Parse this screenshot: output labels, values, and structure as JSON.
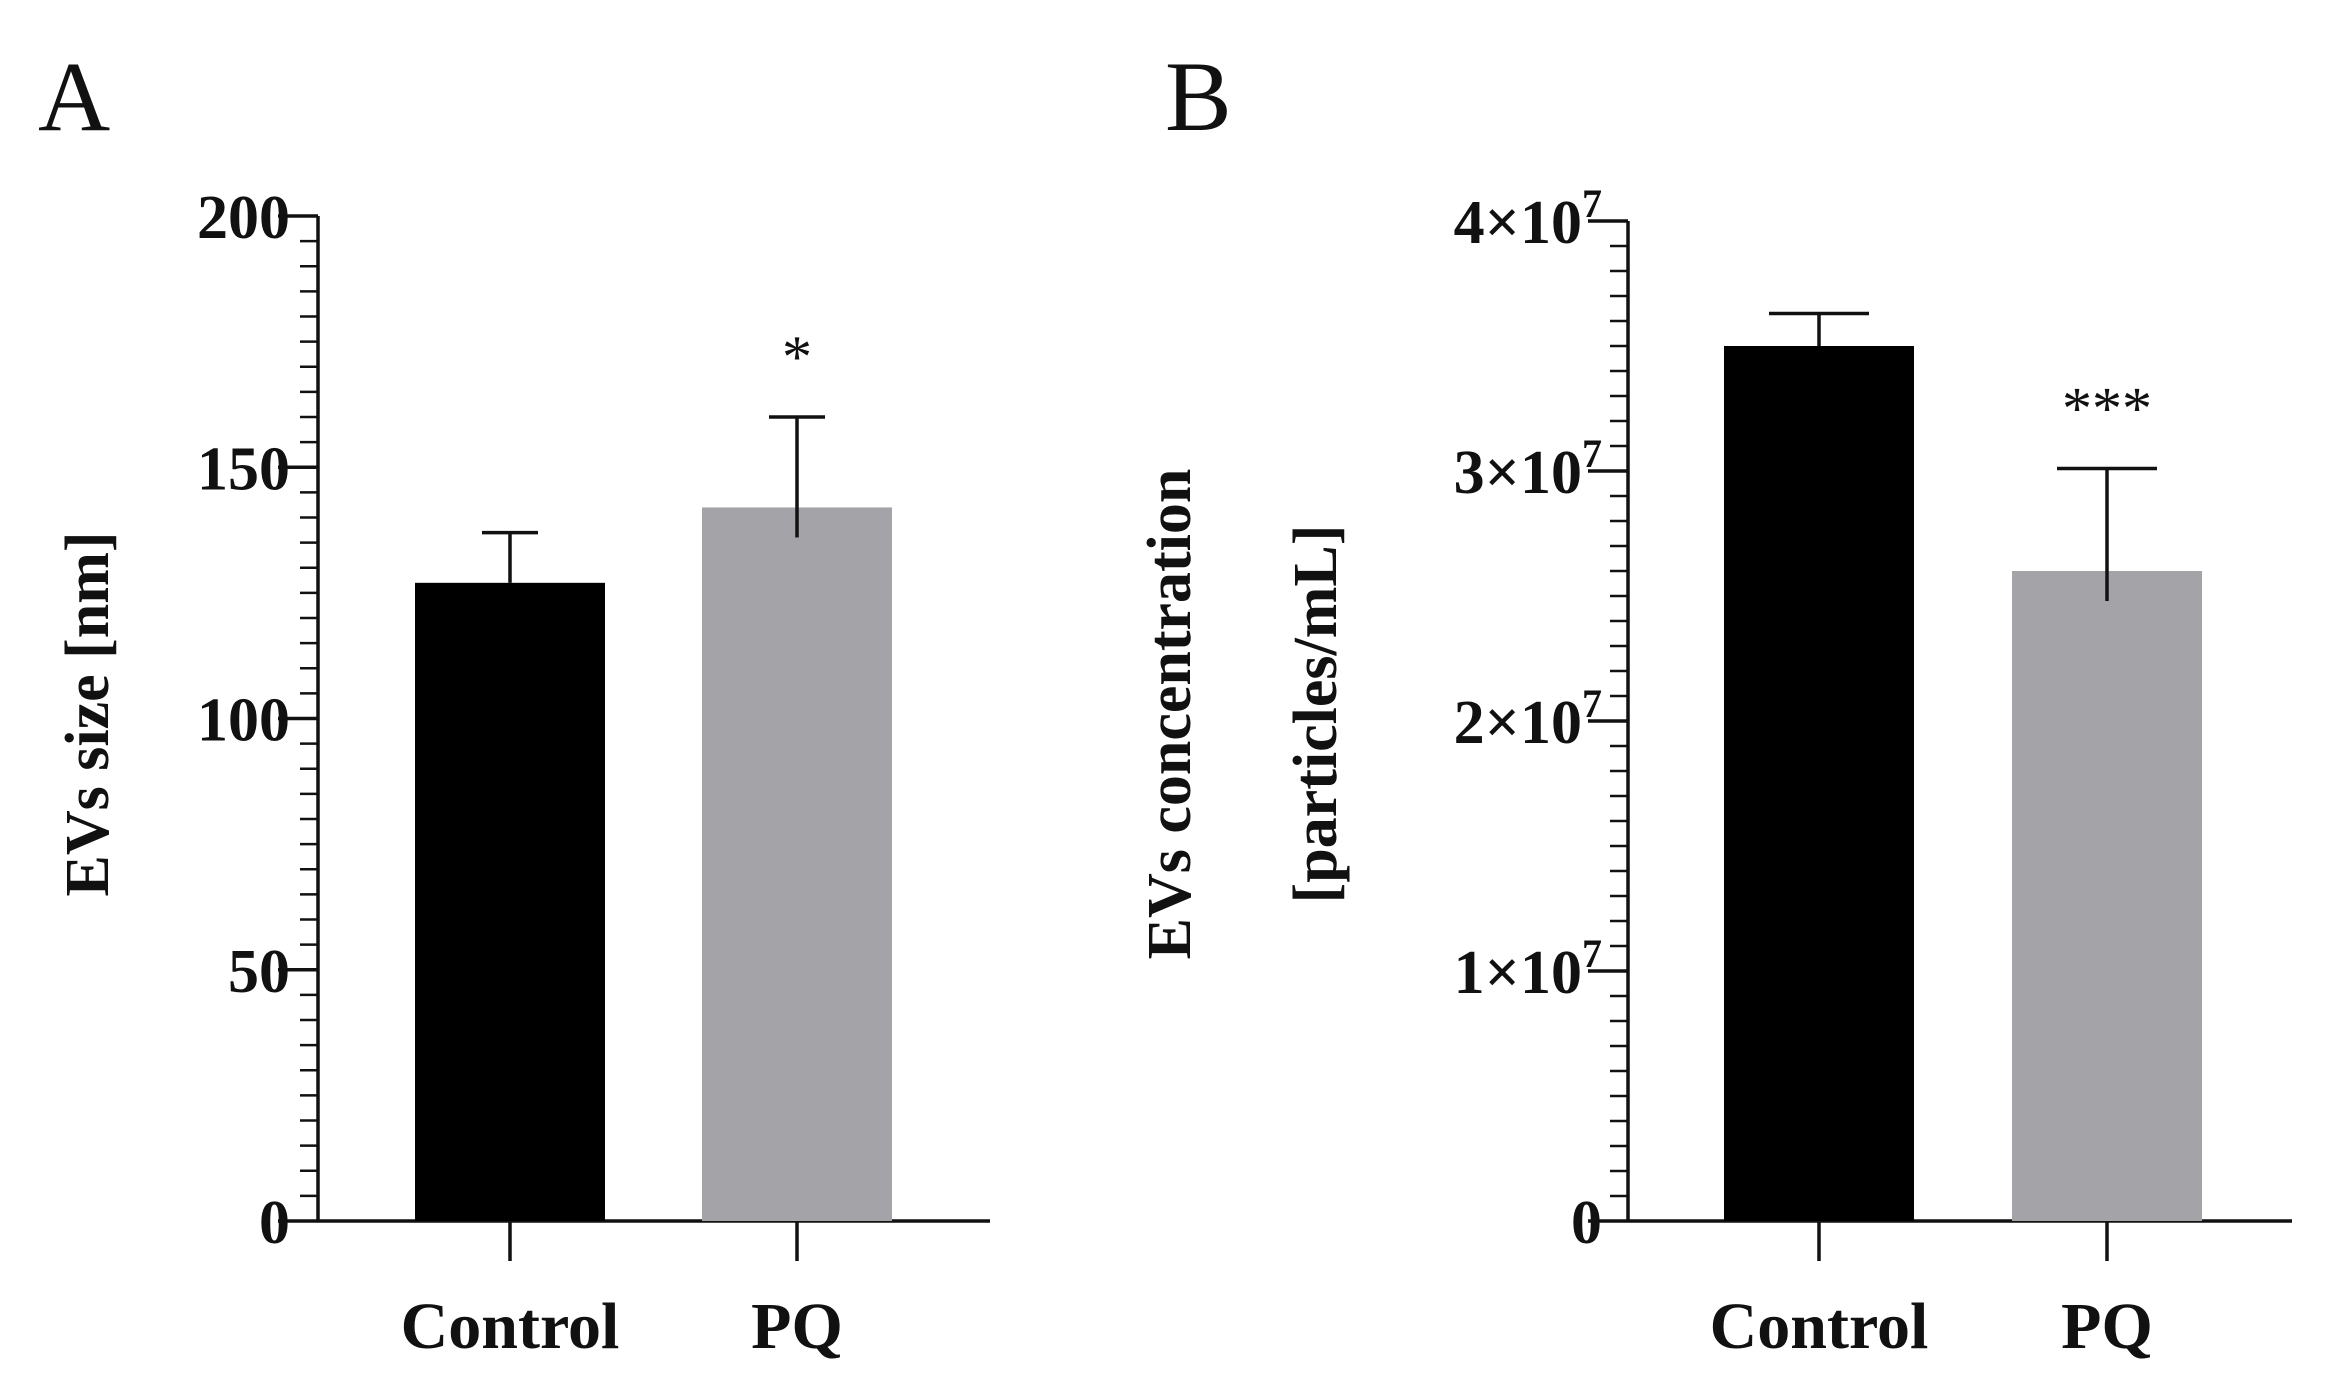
{
  "chart_data": [
    {
      "type": "bar",
      "panel": "A",
      "categories": [
        "Control",
        "PQ"
      ],
      "values": [
        127,
        142
      ],
      "error_upper": [
        137,
        160
      ],
      "significance": [
        "",
        "*"
      ],
      "ylabel": "EVs size [nm]",
      "ylim": [
        0,
        200
      ],
      "yticks": [
        0,
        50,
        100,
        150,
        200
      ],
      "ytick_labels": [
        "0",
        "50",
        "100",
        "150",
        "200"
      ],
      "bar_colors": [
        "#000000",
        "#a3a3a8"
      ],
      "grid": false,
      "legend": "none"
    },
    {
      "type": "bar",
      "panel": "B",
      "categories": [
        "Control",
        "PQ"
      ],
      "values": [
        35000000,
        26000000
      ],
      "error_upper": [
        36300000,
        30100000
      ],
      "significance": [
        "",
        "***"
      ],
      "ylabel_lines": [
        "EVs concentration",
        "[particles/mL]"
      ],
      "ylim": [
        0,
        40000000
      ],
      "yticks": [
        0,
        10000000,
        20000000,
        30000000,
        40000000
      ],
      "ytick_labels": [
        {
          "mantissa": "0",
          "exponent": ""
        },
        {
          "mantissa": "1×10",
          "exponent": "7"
        },
        {
          "mantissa": "2×10",
          "exponent": "7"
        },
        {
          "mantissa": "3×10",
          "exponent": "7"
        },
        {
          "mantissa": "4×10",
          "exponent": "7"
        }
      ],
      "bar_colors": [
        "#000000",
        "#a3a3a8"
      ],
      "grid": false,
      "legend": "none"
    }
  ]
}
